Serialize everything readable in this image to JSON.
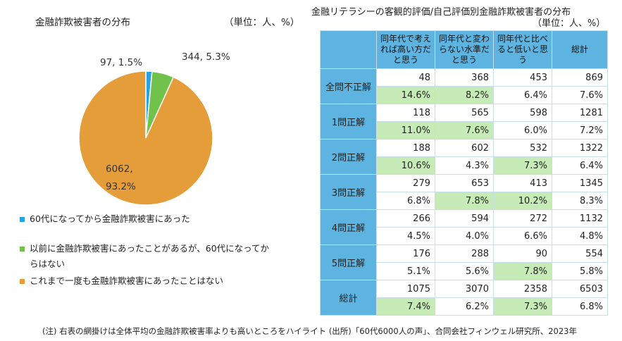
{
  "left": {
    "title": "金融詐欺被害者の分布",
    "unit": "（単位：人、%）"
  },
  "chart_data": [
    {
      "type": "pie",
      "slices": [
        {
          "label": "60代になってから金融詐欺被害にあった",
          "value": 97,
          "percent": 1.5,
          "data_label": "97, 1.5%",
          "color": "#29a3e0"
        },
        {
          "label": "以前に金融詐欺被害にあったことがあるが、60代になってからはない",
          "value": 344,
          "percent": 5.3,
          "data_label": "344, 5.3%",
          "color": "#70c24a"
        },
        {
          "label": "これまで一度も金融詐欺被害にあったことはない",
          "value": 6062,
          "percent": 93.2,
          "data_label_line1": "6062,",
          "data_label_line2": "93.2%",
          "color": "#e59d3a"
        }
      ],
      "legend": {
        "position": "bottom",
        "items": [
          {
            "text": "60代になってから金融詐欺被害にあった",
            "color": "#29a3e0"
          },
          {
            "text": "以前に金融詐欺被害にあったことがあるが、60代になってからはない",
            "color": "#70c24a"
          },
          {
            "text": "これまで一度も金融詐欺被害にあったことはない",
            "color": "#e59d3a"
          }
        ]
      }
    },
    {
      "type": "table",
      "title": "金融リテラシーの客観的評価/自己評価別金融詐欺被害者の分布",
      "unit": "（単位：人、%）",
      "columns": [
        "同年代で考えれば高い方だと思う",
        "同年代と変わらない水準だと思う",
        "同年代と比べると低いと思う",
        "総計"
      ],
      "rows": [
        {
          "label": "全問不正解",
          "counts": [
            "48",
            "368",
            "453",
            "869"
          ],
          "rates": [
            "14.6%",
            "8.2%",
            "6.4%",
            "7.6%"
          ],
          "highlight": [
            true,
            true,
            false,
            false
          ]
        },
        {
          "label": "1問正解",
          "counts": [
            "118",
            "565",
            "598",
            "1281"
          ],
          "rates": [
            "11.0%",
            "7.6%",
            "6.0%",
            "7.2%"
          ],
          "highlight": [
            true,
            true,
            false,
            false
          ]
        },
        {
          "label": "2問正解",
          "counts": [
            "188",
            "602",
            "532",
            "1322"
          ],
          "rates": [
            "10.6%",
            "4.3%",
            "7.3%",
            "6.4%"
          ],
          "highlight": [
            true,
            false,
            true,
            false
          ]
        },
        {
          "label": "3問正解",
          "counts": [
            "279",
            "653",
            "413",
            "1345"
          ],
          "rates": [
            "6.8%",
            "7.8%",
            "10.2%",
            "8.3%"
          ],
          "highlight": [
            false,
            true,
            true,
            false
          ]
        },
        {
          "label": "4問正解",
          "counts": [
            "266",
            "594",
            "272",
            "1132"
          ],
          "rates": [
            "4.5%",
            "4.0%",
            "6.6%",
            "4.8%"
          ],
          "highlight": [
            false,
            false,
            false,
            false
          ]
        },
        {
          "label": "5問正解",
          "counts": [
            "176",
            "288",
            "90",
            "554"
          ],
          "rates": [
            "5.1%",
            "5.6%",
            "7.8%",
            "5.8%"
          ],
          "highlight": [
            false,
            false,
            true,
            false
          ]
        },
        {
          "label": "総計",
          "counts": [
            "1075",
            "3070",
            "2358",
            "6503"
          ],
          "rates": [
            "7.4%",
            "6.2%",
            "7.3%",
            "6.8%"
          ],
          "highlight": [
            true,
            false,
            true,
            false
          ]
        }
      ],
      "highlight_color": "#c6ebb6",
      "header_color": "#5eb4e1"
    }
  ],
  "right": {
    "title": "金融リテラシーの客観的評価/自己評価別金融詐欺被害者の分布",
    "unit": "（単位：人、%）"
  },
  "footnote": "(注) 右表の網掛けは全体平均の金融詐欺被害率よりも高いところをハイライト (出所)「60代6000人の声」、合同会社フィンウェル研究所、2023年"
}
